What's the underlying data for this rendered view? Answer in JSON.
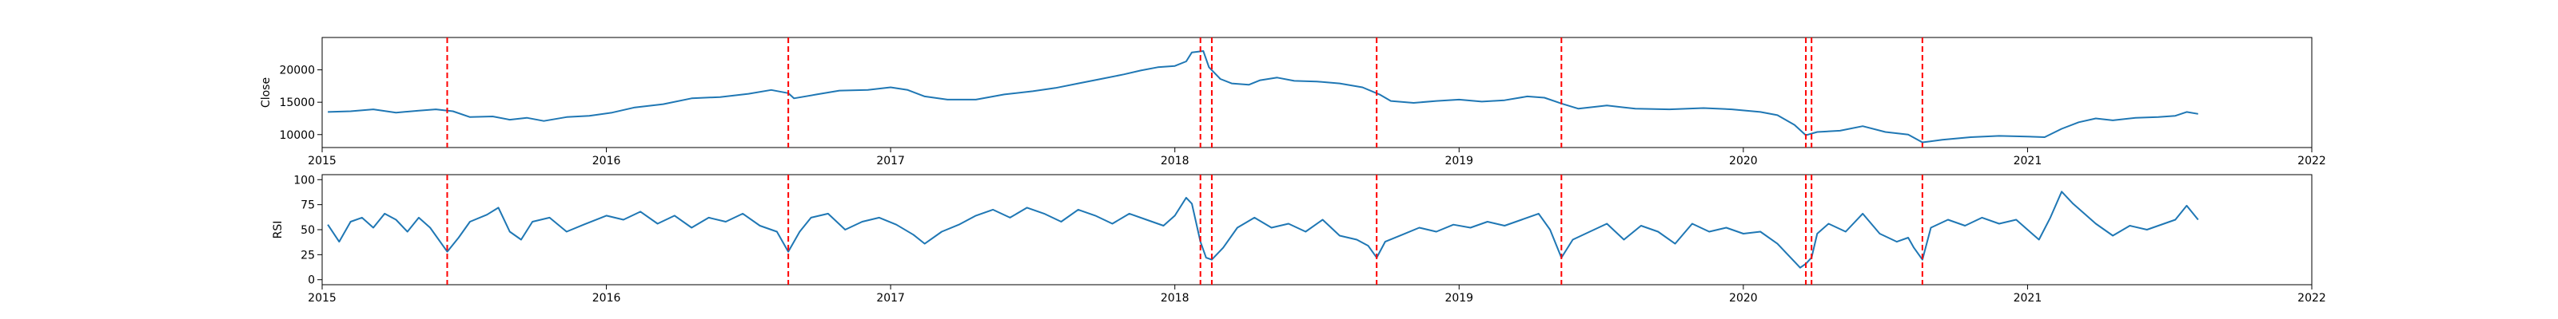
{
  "chart_data": [
    {
      "type": "line",
      "ylabel": "Close",
      "xlim": [
        2015,
        2022
      ],
      "ylim": [
        8000,
        25000
      ],
      "x_ticks": [
        2015,
        2016,
        2017,
        2018,
        2019,
        2020,
        2021,
        2022
      ],
      "y_ticks": [
        10000,
        15000,
        20000
      ],
      "series": [
        {
          "color": "#1f77b4",
          "points": [
            [
              2015.02,
              13500
            ],
            [
              2015.1,
              13600
            ],
            [
              2015.18,
              13900
            ],
            [
              2015.26,
              13400
            ],
            [
              2015.34,
              13700
            ],
            [
              2015.4,
              13900
            ],
            [
              2015.46,
              13600
            ],
            [
              2015.52,
              12700
            ],
            [
              2015.6,
              12800
            ],
            [
              2015.66,
              12300
            ],
            [
              2015.72,
              12600
            ],
            [
              2015.78,
              12100
            ],
            [
              2015.86,
              12700
            ],
            [
              2015.94,
              12900
            ],
            [
              2016.02,
              13400
            ],
            [
              2016.1,
              14200
            ],
            [
              2016.2,
              14700
            ],
            [
              2016.3,
              15600
            ],
            [
              2016.4,
              15800
            ],
            [
              2016.5,
              16300
            ],
            [
              2016.58,
              16900
            ],
            [
              2016.64,
              16400
            ],
            [
              2016.66,
              15600
            ],
            [
              2016.74,
              16200
            ],
            [
              2016.82,
              16800
            ],
            [
              2016.92,
              16900
            ],
            [
              2017.0,
              17300
            ],
            [
              2017.06,
              16900
            ],
            [
              2017.12,
              15900
            ],
            [
              2017.2,
              15400
            ],
            [
              2017.3,
              15400
            ],
            [
              2017.4,
              16200
            ],
            [
              2017.5,
              16700
            ],
            [
              2017.58,
              17200
            ],
            [
              2017.66,
              17900
            ],
            [
              2017.74,
              18600
            ],
            [
              2017.82,
              19300
            ],
            [
              2017.88,
              19900
            ],
            [
              2017.94,
              20400
            ],
            [
              2018.0,
              20600
            ],
            [
              2018.04,
              21300
            ],
            [
              2018.06,
              22700
            ],
            [
              2018.1,
              22900
            ],
            [
              2018.12,
              20400
            ],
            [
              2018.16,
              18600
            ],
            [
              2018.2,
              17900
            ],
            [
              2018.26,
              17700
            ],
            [
              2018.3,
              18400
            ],
            [
              2018.36,
              18800
            ],
            [
              2018.42,
              18300
            ],
            [
              2018.5,
              18200
            ],
            [
              2018.58,
              17900
            ],
            [
              2018.66,
              17300
            ],
            [
              2018.72,
              16200
            ],
            [
              2018.76,
              15200
            ],
            [
              2018.84,
              14900
            ],
            [
              2018.92,
              15200
            ],
            [
              2019.0,
              15400
            ],
            [
              2019.08,
              15100
            ],
            [
              2019.16,
              15300
            ],
            [
              2019.24,
              15900
            ],
            [
              2019.3,
              15700
            ],
            [
              2019.36,
              14800
            ],
            [
              2019.42,
              14000
            ],
            [
              2019.52,
              14500
            ],
            [
              2019.62,
              14000
            ],
            [
              2019.74,
              13900
            ],
            [
              2019.86,
              14100
            ],
            [
              2019.96,
              13900
            ],
            [
              2020.06,
              13500
            ],
            [
              2020.12,
              13000
            ],
            [
              2020.18,
              11500
            ],
            [
              2020.22,
              9900
            ],
            [
              2020.26,
              10400
            ],
            [
              2020.34,
              10600
            ],
            [
              2020.42,
              11300
            ],
            [
              2020.5,
              10400
            ],
            [
              2020.58,
              10000
            ],
            [
              2020.63,
              8800
            ],
            [
              2020.7,
              9200
            ],
            [
              2020.8,
              9600
            ],
            [
              2020.9,
              9800
            ],
            [
              2021.0,
              9700
            ],
            [
              2021.06,
              9600
            ],
            [
              2021.12,
              10900
            ],
            [
              2021.18,
              11900
            ],
            [
              2021.24,
              12500
            ],
            [
              2021.3,
              12200
            ],
            [
              2021.38,
              12600
            ],
            [
              2021.46,
              12700
            ],
            [
              2021.52,
              12900
            ],
            [
              2021.56,
              13500
            ],
            [
              2021.6,
              13200
            ]
          ]
        }
      ],
      "vlines": [
        2015.44,
        2016.64,
        2018.09,
        2018.13,
        2018.71,
        2019.36,
        2020.22,
        2020.24,
        2020.63
      ],
      "vline_color": "#ff0000"
    },
    {
      "type": "line",
      "ylabel": "RSI",
      "xlim": [
        2015,
        2022
      ],
      "ylim": [
        -5,
        105
      ],
      "x_ticks": [
        2015,
        2016,
        2017,
        2018,
        2019,
        2020,
        2021,
        2022
      ],
      "y_ticks": [
        0,
        25,
        50,
        75,
        100
      ],
      "series": [
        {
          "color": "#1f77b4",
          "points": [
            [
              2015.02,
              55
            ],
            [
              2015.06,
              38
            ],
            [
              2015.1,
              58
            ],
            [
              2015.14,
              62
            ],
            [
              2015.18,
              52
            ],
            [
              2015.22,
              66
            ],
            [
              2015.26,
              60
            ],
            [
              2015.3,
              48
            ],
            [
              2015.34,
              62
            ],
            [
              2015.38,
              52
            ],
            [
              2015.44,
              28
            ],
            [
              2015.48,
              42
            ],
            [
              2015.52,
              58
            ],
            [
              2015.58,
              65
            ],
            [
              2015.62,
              72
            ],
            [
              2015.66,
              48
            ],
            [
              2015.7,
              40
            ],
            [
              2015.74,
              58
            ],
            [
              2015.8,
              62
            ],
            [
              2015.86,
              48
            ],
            [
              2015.92,
              55
            ],
            [
              2016.0,
              64
            ],
            [
              2016.06,
              60
            ],
            [
              2016.12,
              68
            ],
            [
              2016.18,
              56
            ],
            [
              2016.24,
              64
            ],
            [
              2016.3,
              52
            ],
            [
              2016.36,
              62
            ],
            [
              2016.42,
              58
            ],
            [
              2016.48,
              66
            ],
            [
              2016.54,
              54
            ],
            [
              2016.6,
              48
            ],
            [
              2016.64,
              28
            ],
            [
              2016.68,
              48
            ],
            [
              2016.72,
              62
            ],
            [
              2016.78,
              66
            ],
            [
              2016.84,
              50
            ],
            [
              2016.9,
              58
            ],
            [
              2016.96,
              62
            ],
            [
              2017.02,
              55
            ],
            [
              2017.08,
              45
            ],
            [
              2017.12,
              36
            ],
            [
              2017.18,
              48
            ],
            [
              2017.24,
              55
            ],
            [
              2017.3,
              64
            ],
            [
              2017.36,
              70
            ],
            [
              2017.42,
              62
            ],
            [
              2017.48,
              72
            ],
            [
              2017.54,
              66
            ],
            [
              2017.6,
              58
            ],
            [
              2017.66,
              70
            ],
            [
              2017.72,
              64
            ],
            [
              2017.78,
              56
            ],
            [
              2017.84,
              66
            ],
            [
              2017.9,
              60
            ],
            [
              2017.96,
              54
            ],
            [
              2018.0,
              64
            ],
            [
              2018.04,
              82
            ],
            [
              2018.06,
              76
            ],
            [
              2018.09,
              38
            ],
            [
              2018.11,
              22
            ],
            [
              2018.13,
              20
            ],
            [
              2018.17,
              32
            ],
            [
              2018.22,
              52
            ],
            [
              2018.28,
              62
            ],
            [
              2018.34,
              52
            ],
            [
              2018.4,
              56
            ],
            [
              2018.46,
              48
            ],
            [
              2018.52,
              60
            ],
            [
              2018.58,
              44
            ],
            [
              2018.64,
              40
            ],
            [
              2018.68,
              34
            ],
            [
              2018.71,
              22
            ],
            [
              2018.74,
              38
            ],
            [
              2018.8,
              45
            ],
            [
              2018.86,
              52
            ],
            [
              2018.92,
              48
            ],
            [
              2018.98,
              55
            ],
            [
              2019.04,
              52
            ],
            [
              2019.1,
              58
            ],
            [
              2019.16,
              54
            ],
            [
              2019.22,
              60
            ],
            [
              2019.28,
              66
            ],
            [
              2019.32,
              50
            ],
            [
              2019.36,
              22
            ],
            [
              2019.4,
              40
            ],
            [
              2019.46,
              48
            ],
            [
              2019.52,
              56
            ],
            [
              2019.58,
              40
            ],
            [
              2019.64,
              54
            ],
            [
              2019.7,
              48
            ],
            [
              2019.76,
              36
            ],
            [
              2019.82,
              56
            ],
            [
              2019.88,
              48
            ],
            [
              2019.94,
              52
            ],
            [
              2020.0,
              46
            ],
            [
              2020.06,
              48
            ],
            [
              2020.12,
              36
            ],
            [
              2020.16,
              24
            ],
            [
              2020.2,
              12
            ],
            [
              2020.22,
              16
            ],
            [
              2020.24,
              22
            ],
            [
              2020.26,
              46
            ],
            [
              2020.3,
              56
            ],
            [
              2020.36,
              48
            ],
            [
              2020.42,
              66
            ],
            [
              2020.48,
              46
            ],
            [
              2020.54,
              38
            ],
            [
              2020.58,
              42
            ],
            [
              2020.6,
              32
            ],
            [
              2020.63,
              20
            ],
            [
              2020.66,
              52
            ],
            [
              2020.72,
              60
            ],
            [
              2020.78,
              54
            ],
            [
              2020.84,
              62
            ],
            [
              2020.9,
              56
            ],
            [
              2020.96,
              60
            ],
            [
              2021.0,
              50
            ],
            [
              2021.04,
              40
            ],
            [
              2021.08,
              62
            ],
            [
              2021.12,
              88
            ],
            [
              2021.16,
              76
            ],
            [
              2021.2,
              66
            ],
            [
              2021.24,
              56
            ],
            [
              2021.3,
              44
            ],
            [
              2021.36,
              54
            ],
            [
              2021.42,
              50
            ],
            [
              2021.48,
              56
            ],
            [
              2021.52,
              60
            ],
            [
              2021.56,
              74
            ],
            [
              2021.6,
              60
            ]
          ]
        }
      ],
      "vlines": [
        2015.44,
        2016.64,
        2018.09,
        2018.13,
        2018.71,
        2019.36,
        2020.22,
        2020.24,
        2020.63
      ],
      "vline_color": "#ff0000"
    }
  ]
}
